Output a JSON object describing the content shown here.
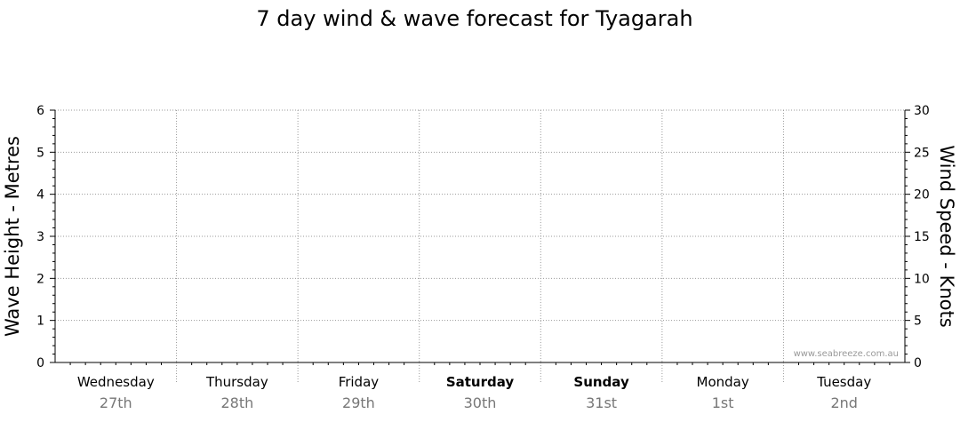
{
  "chart_data": {
    "type": "line",
    "title": "7 day wind & wave forecast for Tyagarah",
    "ylabel_left": "Wave Height - Metres",
    "ylabel_right": "Wind Speed - Knots",
    "ylim_left": [
      0,
      6
    ],
    "ylim_right": [
      0,
      30
    ],
    "yticks_left": [
      "0",
      "1",
      "2",
      "3",
      "4",
      "5",
      "6"
    ],
    "yticks_right": [
      "0",
      "5",
      "10",
      "15",
      "20",
      "25",
      "30"
    ],
    "days": [
      {
        "day": "Wednesday",
        "date": "27th",
        "weekend": false
      },
      {
        "day": "Thursday",
        "date": "28th",
        "weekend": false
      },
      {
        "day": "Friday",
        "date": "29th",
        "weekend": false
      },
      {
        "day": "Saturday",
        "date": "30th",
        "weekend": true
      },
      {
        "day": "Sunday",
        "date": "31st",
        "weekend": true
      },
      {
        "day": "Monday",
        "date": "1st",
        "weekend": false
      },
      {
        "day": "Tuesday",
        "date": "2nd",
        "weekend": false
      }
    ],
    "series": [],
    "grid": true,
    "watermark": "www.seabreeze.com.au"
  }
}
